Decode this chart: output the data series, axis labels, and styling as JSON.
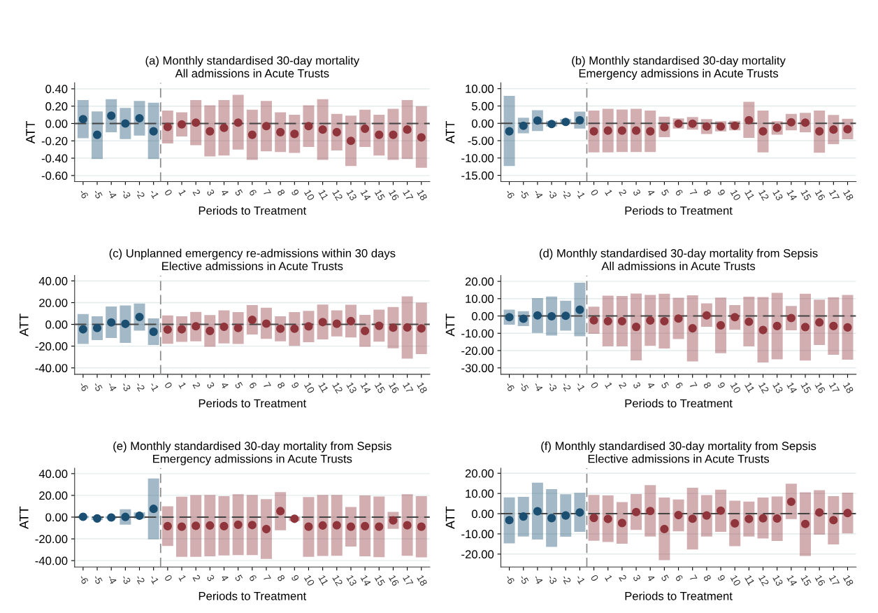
{
  "chart_data": [
    {
      "type": "scatter",
      "title": "(a) Monthly standardised 30-day mortality",
      "subtitle": "All admissions in Acute Trusts",
      "xlabel": "Periods to Treatment",
      "ylabel": "ATT",
      "x": [
        -6,
        -5,
        -4,
        -3,
        -2,
        -1,
        0,
        1,
        2,
        3,
        4,
        5,
        6,
        7,
        8,
        9,
        10,
        11,
        12,
        13,
        14,
        15,
        16,
        17,
        18
      ],
      "xlim": [
        -6.6,
        18.6
      ],
      "xticks": [
        -6,
        -5,
        -4,
        -3,
        -2,
        -1,
        0,
        1,
        2,
        3,
        4,
        5,
        6,
        7,
        8,
        9,
        10,
        11,
        12,
        13,
        14,
        15,
        16,
        17,
        18
      ],
      "ylim": [
        -0.67,
        0.47
      ],
      "yticks": [
        {
          "value": 0.4,
          "label": "0.40"
        },
        {
          "value": 0.2,
          "label": "0.20"
        },
        {
          "value": 0,
          "label": "0.00"
        },
        {
          "value": -0.2,
          "label": "-0.20"
        },
        {
          "value": -0.4,
          "label": "-0.40"
        },
        {
          "value": -0.6,
          "label": "-0.60"
        }
      ],
      "grid": "y",
      "marker": "circle",
      "ref_lines": [
        {
          "axis": "y",
          "value": 0,
          "color": "#444444",
          "line_style": "dashed"
        },
        {
          "axis": "x",
          "value": -0.5,
          "color": "#888888",
          "line_style": "dashed"
        }
      ],
      "series": [
        {
          "color": "#1b4f72",
          "values": [
            0.05,
            -0.13,
            0.09,
            0.0,
            0.06,
            -0.09,
            null,
            null,
            null,
            null,
            null,
            null,
            null,
            null,
            null,
            null,
            null,
            null,
            null,
            null,
            null,
            null,
            null,
            null,
            null
          ],
          "errors": [
            [
              -0.17,
              0.27
            ],
            [
              -0.41,
              0.14
            ],
            [
              -0.1,
              0.28
            ],
            [
              -0.18,
              0.18
            ],
            [
              -0.14,
              0.26
            ],
            [
              -0.41,
              0.24
            ],
            null,
            null,
            null,
            null,
            null,
            null,
            null,
            null,
            null,
            null,
            null,
            null,
            null,
            null,
            null,
            null,
            null,
            null,
            null
          ]
        },
        {
          "color": "#90353b",
          "values": [
            null,
            null,
            null,
            null,
            null,
            null,
            -0.04,
            -0.01,
            0.01,
            -0.09,
            -0.05,
            0.01,
            -0.13,
            -0.03,
            -0.1,
            -0.12,
            -0.03,
            -0.07,
            -0.1,
            -0.2,
            -0.06,
            -0.13,
            -0.13,
            -0.07,
            -0.16
          ],
          "errors": [
            null,
            null,
            null,
            null,
            null,
            null,
            [
              -0.23,
              0.15
            ],
            [
              -0.15,
              0.13
            ],
            [
              -0.25,
              0.27
            ],
            [
              -0.38,
              0.21
            ],
            [
              -0.37,
              0.27
            ],
            [
              -0.3,
              0.33
            ],
            [
              -0.42,
              0.16
            ],
            [
              -0.32,
              0.26
            ],
            [
              -0.33,
              0.13
            ],
            [
              -0.34,
              0.1
            ],
            [
              -0.27,
              0.21
            ],
            [
              -0.42,
              0.28
            ],
            [
              -0.31,
              0.11
            ],
            [
              -0.49,
              0.09
            ],
            [
              -0.27,
              0.16
            ],
            [
              -0.37,
              0.1
            ],
            [
              -0.42,
              0.17
            ],
            [
              -0.41,
              0.27
            ],
            [
              -0.51,
              0.2
            ]
          ]
        }
      ]
    },
    {
      "type": "scatter",
      "title": "(b) Monthly standardised 30-day mortality",
      "subtitle": "Emergency admissions in Acute Trusts",
      "xlabel": "Periods to Treatment",
      "ylabel": "ATT",
      "x": [
        -6,
        -5,
        -4,
        -3,
        -2,
        -1,
        0,
        1,
        2,
        3,
        4,
        5,
        6,
        7,
        8,
        9,
        10,
        11,
        12,
        13,
        14,
        15,
        16,
        17,
        18
      ],
      "xlim": [
        -6.6,
        18.6
      ],
      "xticks": [
        -6,
        -5,
        -4,
        -3,
        -2,
        -1,
        0,
        1,
        2,
        3,
        4,
        5,
        6,
        7,
        8,
        9,
        10,
        11,
        12,
        13,
        14,
        15,
        16,
        17,
        18
      ],
      "ylim": [
        -16.8,
        11.7
      ],
      "yticks": [
        {
          "value": 10,
          "label": "10.00"
        },
        {
          "value": 5,
          "label": "5.00"
        },
        {
          "value": 0,
          "label": "0.00"
        },
        {
          "value": -5,
          "label": "-5.00"
        },
        {
          "value": -10,
          "label": "-10.00"
        },
        {
          "value": -15,
          "label": "-15.00"
        }
      ],
      "grid": "y",
      "marker": "circle",
      "ref_lines": [
        {
          "axis": "y",
          "value": 0,
          "color": "#444444",
          "line_style": "dashed"
        },
        {
          "axis": "x",
          "value": -0.5,
          "color": "#888888",
          "line_style": "dashed"
        }
      ],
      "series": [
        {
          "color": "#1b4f72",
          "values": [
            -2.3,
            -0.7,
            0.8,
            -0.2,
            0.4,
            0.9,
            null,
            null,
            null,
            null,
            null,
            null,
            null,
            null,
            null,
            null,
            null,
            null,
            null,
            null,
            null,
            null,
            null,
            null,
            null
          ],
          "errors": [
            [
              -12.3,
              7.9
            ],
            [
              -2.9,
              1.6
            ],
            [
              -2.2,
              3.8
            ],
            [
              -0.9,
              0.7
            ],
            [
              -0.2,
              1.2
            ],
            [
              -1.5,
              3.4
            ],
            null,
            null,
            null,
            null,
            null,
            null,
            null,
            null,
            null,
            null,
            null,
            null,
            null,
            null,
            null,
            null,
            null,
            null,
            null
          ]
        },
        {
          "color": "#90353b",
          "values": [
            null,
            null,
            null,
            null,
            null,
            null,
            -2.3,
            -2.1,
            -2.1,
            -2.1,
            -2.3,
            -1.1,
            -0.1,
            -0.1,
            -0.9,
            -0.9,
            -0.7,
            0.9,
            -2.3,
            -1.3,
            0.3,
            0.2,
            -2.3,
            -1.8,
            -1.7
          ],
          "errors": [
            null,
            null,
            null,
            null,
            null,
            null,
            [
              -8.4,
              3.7
            ],
            [
              -8.4,
              4.2
            ],
            [
              -8.3,
              4.0
            ],
            [
              -8.3,
              4.2
            ],
            [
              -8.3,
              3.7
            ],
            [
              -4.0,
              1.9
            ],
            [
              -1.5,
              1.4
            ],
            [
              -1.8,
              1.8
            ],
            [
              -3.1,
              1.2
            ],
            [
              -2.3,
              0.6
            ],
            [
              -2.0,
              0.7
            ],
            [
              -4.2,
              6.2
            ],
            [
              -8.4,
              3.7
            ],
            [
              -3.3,
              0.6
            ],
            [
              -2.0,
              2.7
            ],
            [
              -2.6,
              3.0
            ],
            [
              -8.5,
              3.7
            ],
            [
              -6.0,
              2.4
            ],
            [
              -4.6,
              1.3
            ]
          ]
        }
      ]
    },
    {
      "type": "scatter",
      "title": "(c) Unplanned emergency re-admissions within 30 days",
      "subtitle": "Elective admissions in Acute Trusts",
      "xlabel": "Periods to Treatment",
      "ylabel": "ATT",
      "x": [
        -6,
        -5,
        -4,
        -3,
        -2,
        -1,
        0,
        1,
        2,
        3,
        4,
        5,
        6,
        7,
        8,
        9,
        10,
        11,
        12,
        13,
        14,
        15,
        16,
        17,
        18
      ],
      "xlim": [
        -6.6,
        18.6
      ],
      "xticks": [
        -6,
        -5,
        -4,
        -3,
        -2,
        -1,
        0,
        1,
        2,
        3,
        4,
        5,
        6,
        7,
        8,
        9,
        10,
        11,
        12,
        13,
        14,
        15,
        16,
        17,
        18
      ],
      "ylim": [
        -45.9,
        45
      ],
      "yticks": [
        {
          "value": 40,
          "label": "40.00"
        },
        {
          "value": 20,
          "label": "20.00"
        },
        {
          "value": 0,
          "label": "0.00"
        },
        {
          "value": -20,
          "label": "-20.00"
        },
        {
          "value": -40,
          "label": "-40.00"
        }
      ],
      "grid": "y",
      "marker": "circle",
      "ref_lines": [
        {
          "axis": "y",
          "value": 0,
          "color": "#444444",
          "line_style": "dashed"
        },
        {
          "axis": "x",
          "value": -0.5,
          "color": "#888888",
          "line_style": "dashed"
        }
      ],
      "series": [
        {
          "color": "#1b4f72",
          "values": [
            -4.5,
            -3.3,
            1.8,
            0.5,
            6.8,
            -6.8,
            null,
            null,
            null,
            null,
            null,
            null,
            null,
            null,
            null,
            null,
            null,
            null,
            null,
            null,
            null,
            null,
            null,
            null,
            null
          ],
          "errors": [
            [
              -18,
              9.5
            ],
            [
              -14.5,
              7.5
            ],
            [
              -12.5,
              16.5
            ],
            [
              -17,
              17.5
            ],
            [
              -5.7,
              19.2
            ],
            [
              -19,
              5.6
            ],
            null,
            null,
            null,
            null,
            null,
            null,
            null,
            null,
            null,
            null,
            null,
            null,
            null,
            null,
            null,
            null,
            null,
            null,
            null
          ]
        },
        {
          "color": "#90353b",
          "values": [
            null,
            null,
            null,
            null,
            null,
            null,
            -4.8,
            -4.5,
            -1.7,
            -6,
            -2.2,
            -3.3,
            4.2,
            0.7,
            -4,
            -4,
            -1.8,
            2.1,
            0.6,
            3,
            -6,
            -1.3,
            -3,
            -2.8,
            -3.7
          ],
          "errors": [
            null,
            null,
            null,
            null,
            null,
            null,
            [
              -17.8,
              8.3
            ],
            [
              -16,
              7.5
            ],
            [
              -15.5,
              11.5
            ],
            [
              -20.5,
              8.5
            ],
            [
              -17.5,
              13
            ],
            [
              -18,
              11.3
            ],
            [
              -9.3,
              17.7
            ],
            [
              -13.3,
              15.3
            ],
            [
              -15.5,
              7.5
            ],
            [
              -19.8,
              11.3
            ],
            [
              -16.3,
              12.5
            ],
            [
              -13.8,
              18.3
            ],
            [
              -11,
              13
            ],
            [
              -12,
              18
            ],
            [
              -20.5,
              8.8
            ],
            [
              -15.8,
              13.5
            ],
            [
              -22,
              16
            ],
            [
              -31.5,
              25.8
            ],
            [
              -27.3,
              20
            ]
          ]
        }
      ]
    },
    {
      "type": "scatter",
      "title": "(d) Monthly standardised 30-day mortality from Sepsis",
      "subtitle": "All admissions in Acute Trusts",
      "xlabel": "Periods to Treatment",
      "ylabel": "ATT",
      "x": [
        -6,
        -5,
        -4,
        -3,
        -2,
        -1,
        0,
        1,
        2,
        3,
        4,
        5,
        6,
        7,
        8,
        9,
        10,
        11,
        12,
        13,
        14,
        15,
        16,
        17,
        18
      ],
      "xlim": [
        -6.6,
        18.6
      ],
      "xticks": [
        -6,
        -5,
        -4,
        -3,
        -2,
        -1,
        0,
        1,
        2,
        3,
        4,
        5,
        6,
        7,
        8,
        9,
        10,
        11,
        12,
        13,
        14,
        15,
        16,
        17,
        18
      ],
      "ylim": [
        -33.7,
        23.4
      ],
      "yticks": [
        {
          "value": 20,
          "label": "20.00"
        },
        {
          "value": 10,
          "label": "10.00"
        },
        {
          "value": 0,
          "label": "0.00"
        },
        {
          "value": -10,
          "label": "-10.00"
        },
        {
          "value": -20,
          "label": "-20.00"
        },
        {
          "value": -30,
          "label": "-30.00"
        }
      ],
      "grid": "y",
      "marker": "circle",
      "ref_lines": [
        {
          "axis": "y",
          "value": 0,
          "color": "#444444",
          "line_style": "dashed"
        },
        {
          "axis": "x",
          "value": -0.5,
          "color": "#888888",
          "line_style": "dashed"
        }
      ],
      "series": [
        {
          "color": "#1b4f72",
          "values": [
            -0.7,
            -1.6,
            0.3,
            -0.2,
            0.1,
            3.6,
            null,
            null,
            null,
            null,
            null,
            null,
            null,
            null,
            null,
            null,
            null,
            null,
            null,
            null,
            null,
            null,
            null,
            null,
            null
          ],
          "errors": [
            [
              -5,
              3.7
            ],
            [
              -5.8,
              2.7
            ],
            [
              -9.8,
              10.3
            ],
            [
              -11.3,
              11.2
            ],
            [
              -8.5,
              8.8
            ],
            [
              -11.7,
              19.2
            ],
            null,
            null,
            null,
            null,
            null,
            null,
            null,
            null,
            null,
            null,
            null,
            null,
            null,
            null,
            null,
            null,
            null,
            null,
            null
          ]
        },
        {
          "color": "#90353b",
          "values": [
            null,
            null,
            null,
            null,
            null,
            null,
            -2.5,
            -3,
            -3,
            -6.3,
            -2.6,
            -3,
            -1.5,
            -7.1,
            0.3,
            -5.4,
            -0.7,
            -3.3,
            -8.1,
            -5.8,
            -1.2,
            -6.4,
            -3.7,
            -5.8,
            -6.6
          ],
          "errors": [
            null,
            null,
            null,
            null,
            null,
            null,
            [
              -10.3,
              5.4
            ],
            [
              -17.6,
              11.7
            ],
            [
              -17.6,
              11.5
            ],
            [
              -25.7,
              13
            ],
            [
              -17.3,
              12.1
            ],
            [
              -18.8,
              12.9
            ],
            [
              -13.3,
              10.5
            ],
            [
              -26.3,
              11.9
            ],
            [
              -6.3,
              7.3
            ],
            [
              -21.5,
              10.6
            ],
            [
              -8,
              6.3
            ],
            [
              -17.6,
              11.1
            ],
            [
              -26.9,
              10.9
            ],
            [
              -25,
              13.4
            ],
            [
              -8.3,
              5.8
            ],
            [
              -25.8,
              12.9
            ],
            [
              -16.8,
              9.4
            ],
            [
              -22.4,
              10.8
            ],
            [
              -25.3,
              12.1
            ]
          ]
        }
      ]
    },
    {
      "type": "scatter",
      "title": "(e) Monthly standardised 30-day mortality from Sepsis",
      "subtitle": "Emergency admissions in Acute Trusts",
      "xlabel": "Periods to Treatment",
      "ylabel": "ATT",
      "x": [
        -6,
        -5,
        -4,
        -3,
        -2,
        -1,
        0,
        1,
        2,
        3,
        4,
        5,
        6,
        7,
        8,
        9,
        10,
        11,
        12,
        13,
        14,
        15,
        16,
        17,
        18
      ],
      "xlim": [
        -6.6,
        18.6
      ],
      "xticks": [
        -6,
        -5,
        -4,
        -3,
        -2,
        -1,
        0,
        1,
        2,
        3,
        4,
        5,
        6,
        7,
        8,
        9,
        10,
        11,
        12,
        13,
        14,
        15,
        16,
        17,
        18
      ],
      "ylim": [
        -45.9,
        45
      ],
      "yticks": [
        {
          "value": 40,
          "label": "40.00"
        },
        {
          "value": 20,
          "label": "20.00"
        },
        {
          "value": 0,
          "label": "0.00"
        },
        {
          "value": -20,
          "label": "-20.00"
        },
        {
          "value": -40,
          "label": "-40.00"
        }
      ],
      "grid": "y",
      "marker": "circle",
      "ref_lines": [
        {
          "axis": "y",
          "value": 0,
          "color": "#444444",
          "line_style": "dashed"
        },
        {
          "axis": "x",
          "value": -0.5,
          "color": "#888888",
          "line_style": "dashed"
        }
      ],
      "series": [
        {
          "color": "#1b4f72",
          "values": [
            0.3,
            -1.2,
            -0.3,
            0.2,
            1.3,
            7.6,
            null,
            null,
            null,
            null,
            null,
            null,
            null,
            null,
            null,
            null,
            null,
            null,
            null,
            null,
            null,
            null,
            null,
            null,
            null
          ],
          "errors": [
            [
              -1,
              1.3
            ],
            [
              -2.8,
              0.5
            ],
            [
              -1.5,
              0.8
            ],
            [
              -7,
              7.3
            ],
            [
              -1.5,
              4.3
            ],
            [
              -20.5,
              35.5
            ],
            null,
            null,
            null,
            null,
            null,
            null,
            null,
            null,
            null,
            null,
            null,
            null,
            null,
            null,
            null,
            null,
            null,
            null,
            null
          ]
        },
        {
          "color": "#90353b",
          "values": [
            null,
            null,
            null,
            null,
            null,
            null,
            -8.3,
            -8.8,
            -8,
            -7.7,
            -8.3,
            -7,
            -7.3,
            -11,
            5.5,
            -1.5,
            -8.8,
            -7.7,
            -7.5,
            -8.8,
            -8.3,
            -8.8,
            -3,
            -7.5,
            -8.8
          ],
          "errors": [
            null,
            null,
            null,
            null,
            null,
            null,
            [
              -26.5,
              10
            ],
            [
              -36.5,
              18.8
            ],
            [
              -36.5,
              20.3
            ],
            [
              -36,
              20.5
            ],
            [
              -35.3,
              19.3
            ],
            [
              -35,
              21
            ],
            [
              -35,
              20.5
            ],
            [
              -38.5,
              16.5
            ],
            [
              -12,
              23
            ],
            [
              -3.5,
              0.5
            ],
            [
              -36.5,
              18.5
            ],
            [
              -35.8,
              20.5
            ],
            [
              -35.5,
              20.5
            ],
            [
              -27,
              9.3
            ],
            [
              -36,
              20
            ],
            [
              -36.8,
              19
            ],
            [
              -10.8,
              4.8
            ],
            [
              -35.5,
              21
            ],
            [
              -37,
              19.3
            ]
          ]
        }
      ]
    },
    {
      "type": "scatter",
      "title": "(f) Monthly standardised 30-day mortality from Sepsis",
      "subtitle": "Elective admissions in Acute Trusts",
      "xlabel": "Periods to Treatment",
      "ylabel": "ATT",
      "x": [
        -6,
        -5,
        -4,
        -3,
        -2,
        -1,
        0,
        1,
        2,
        3,
        4,
        5,
        6,
        7,
        8,
        9,
        10,
        11,
        12,
        13,
        14,
        15,
        16,
        17,
        18
      ],
      "xlim": [
        -6.6,
        18.6
      ],
      "xticks": [
        -6,
        -5,
        -4,
        -3,
        -2,
        -1,
        0,
        1,
        2,
        3,
        4,
        5,
        6,
        7,
        8,
        9,
        10,
        11,
        12,
        13,
        14,
        15,
        16,
        17,
        18
      ],
      "ylim": [
        -26.4,
        22.5
      ],
      "yticks": [
        {
          "value": 20,
          "label": "20.00"
        },
        {
          "value": 10,
          "label": "10.00"
        },
        {
          "value": 0,
          "label": "0.00"
        },
        {
          "value": -10,
          "label": "-10.00"
        },
        {
          "value": -20,
          "label": "-20.00"
        }
      ],
      "grid": "y",
      "marker": "circle",
      "ref_lines": [
        {
          "axis": "y",
          "value": 0,
          "color": "#444444",
          "line_style": "dashed"
        },
        {
          "axis": "x",
          "value": -0.5,
          "color": "#888888",
          "line_style": "dashed"
        }
      ],
      "series": [
        {
          "color": "#1b4f72",
          "values": [
            -3.2,
            -1.4,
            1.2,
            -2.2,
            -0.9,
            0.6,
            null,
            null,
            null,
            null,
            null,
            null,
            null,
            null,
            null,
            null,
            null,
            null,
            null,
            null,
            null,
            null,
            null,
            null,
            null
          ],
          "errors": [
            [
              -14.7,
              8.1
            ],
            [
              -11.3,
              8.3
            ],
            [
              -12.8,
              15.3
            ],
            [
              -16.4,
              12.1
            ],
            [
              -11.4,
              9.6
            ],
            [
              -9,
              10.3
            ],
            null,
            null,
            null,
            null,
            null,
            null,
            null,
            null,
            null,
            null,
            null,
            null,
            null,
            null,
            null,
            null,
            null,
            null,
            null
          ]
        },
        {
          "color": "#90353b",
          "values": [
            null,
            null,
            null,
            null,
            null,
            null,
            -2.1,
            -2.6,
            -4.6,
            0.8,
            1.3,
            -7.6,
            -0.7,
            -2.5,
            -0.9,
            1.5,
            -4.8,
            -2.6,
            -2.3,
            -2.4,
            5.9,
            -5.1,
            0.6,
            -3.2,
            0.3
          ],
          "errors": [
            null,
            null,
            null,
            null,
            null,
            null,
            [
              -13.4,
              9.3
            ],
            [
              -14,
              9
            ],
            [
              -14.9,
              5.7
            ],
            [
              -8,
              9.7
            ],
            [
              -11.3,
              14.1
            ],
            [
              -23,
              8
            ],
            [
              -8.7,
              7
            ],
            [
              -17.7,
              12.8
            ],
            [
              -11.3,
              9.2
            ],
            [
              -9,
              11.9
            ],
            [
              -16.1,
              6.4
            ],
            [
              -11.3,
              6
            ],
            [
              -12.3,
              8
            ],
            [
              -13.5,
              8.5
            ],
            [
              -2.7,
              14.8
            ],
            [
              -20.9,
              10.6
            ],
            [
              -10.4,
              11.6
            ],
            [
              -15.2,
              8.7
            ],
            [
              -9.8,
              10.4
            ]
          ]
        }
      ]
    }
  ]
}
